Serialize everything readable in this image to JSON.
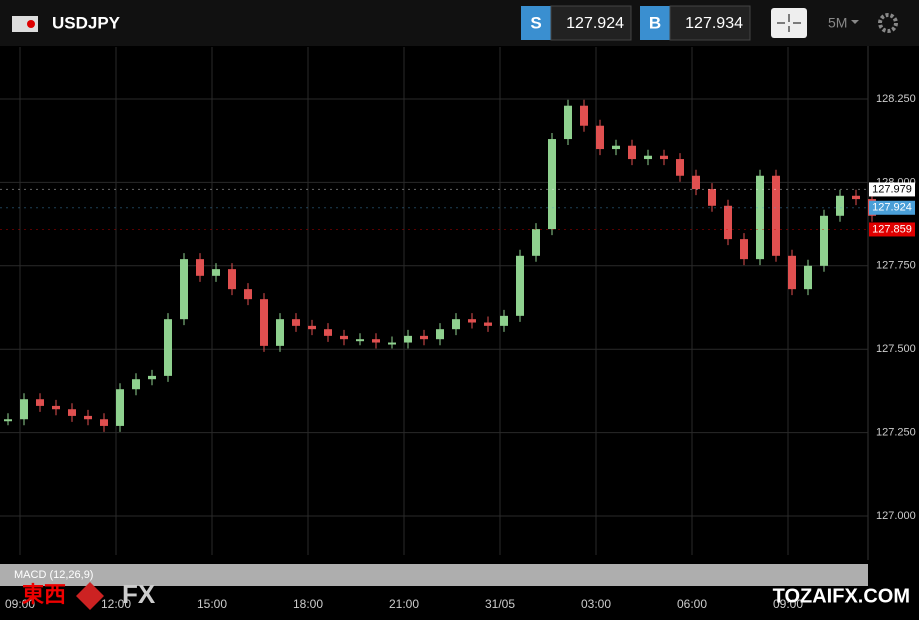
{
  "header": {
    "symbol": "USDJPY",
    "sell": {
      "label": "S",
      "price": "127.924"
    },
    "buy": {
      "label": "B",
      "price": "127.934"
    },
    "timeframe": "5M"
  },
  "chart_data": {
    "type": "candlestick",
    "values": [
      127.29,
      127.35,
      127.33,
      127.32,
      127.3,
      127.29,
      127.27,
      127.38,
      127.41,
      127.42,
      127.59,
      127.77,
      127.72,
      127.74,
      127.68,
      127.65,
      127.51,
      127.59,
      127.57,
      127.56,
      127.54,
      127.53,
      127.53,
      127.52,
      127.52,
      127.54,
      127.53,
      127.56,
      127.59,
      127.58,
      127.57,
      127.6,
      127.78,
      127.86,
      128.13,
      128.23,
      128.17,
      128.1,
      128.11,
      128.07,
      128.08,
      128.07,
      128.02,
      127.98,
      127.93,
      127.83,
      127.77,
      128.02,
      127.78,
      127.68,
      127.75,
      127.9,
      127.96,
      127.95,
      127.9
    ],
    "up_color": "#8fd18f",
    "down_color": "#e05050",
    "ylim": [
      126.883,
      128.406
    ],
    "yticks": [
      {
        "value": 127,
        "label": "127.000"
      },
      {
        "value": 127.25,
        "label": "127.250"
      },
      {
        "value": 127.5,
        "label": "127.500"
      },
      {
        "value": 127.75,
        "label": "127.750"
      },
      {
        "value": 128,
        "label": "128.000"
      },
      {
        "value": 128.25,
        "label": "128.250"
      }
    ],
    "x_ticks": [
      "09:00",
      "12:00",
      "15:00",
      "18:00",
      "21:00",
      "31/05",
      "03:00",
      "06:00",
      "09:00"
    ],
    "price_tags": [
      {
        "value": 127.979,
        "label": "127.979",
        "color": "#ffffff"
      },
      {
        "value": 127.924,
        "label": "127.924",
        "color": "#4a9fd8"
      },
      {
        "value": 127.859,
        "label": "127.859",
        "color": "#e00000"
      }
    ]
  },
  "indicator": {
    "label": "MACD (12,26,9)"
  },
  "watermark": {
    "left": "東西",
    "mid": "FX",
    "right": "TOZAIFX.COM"
  }
}
